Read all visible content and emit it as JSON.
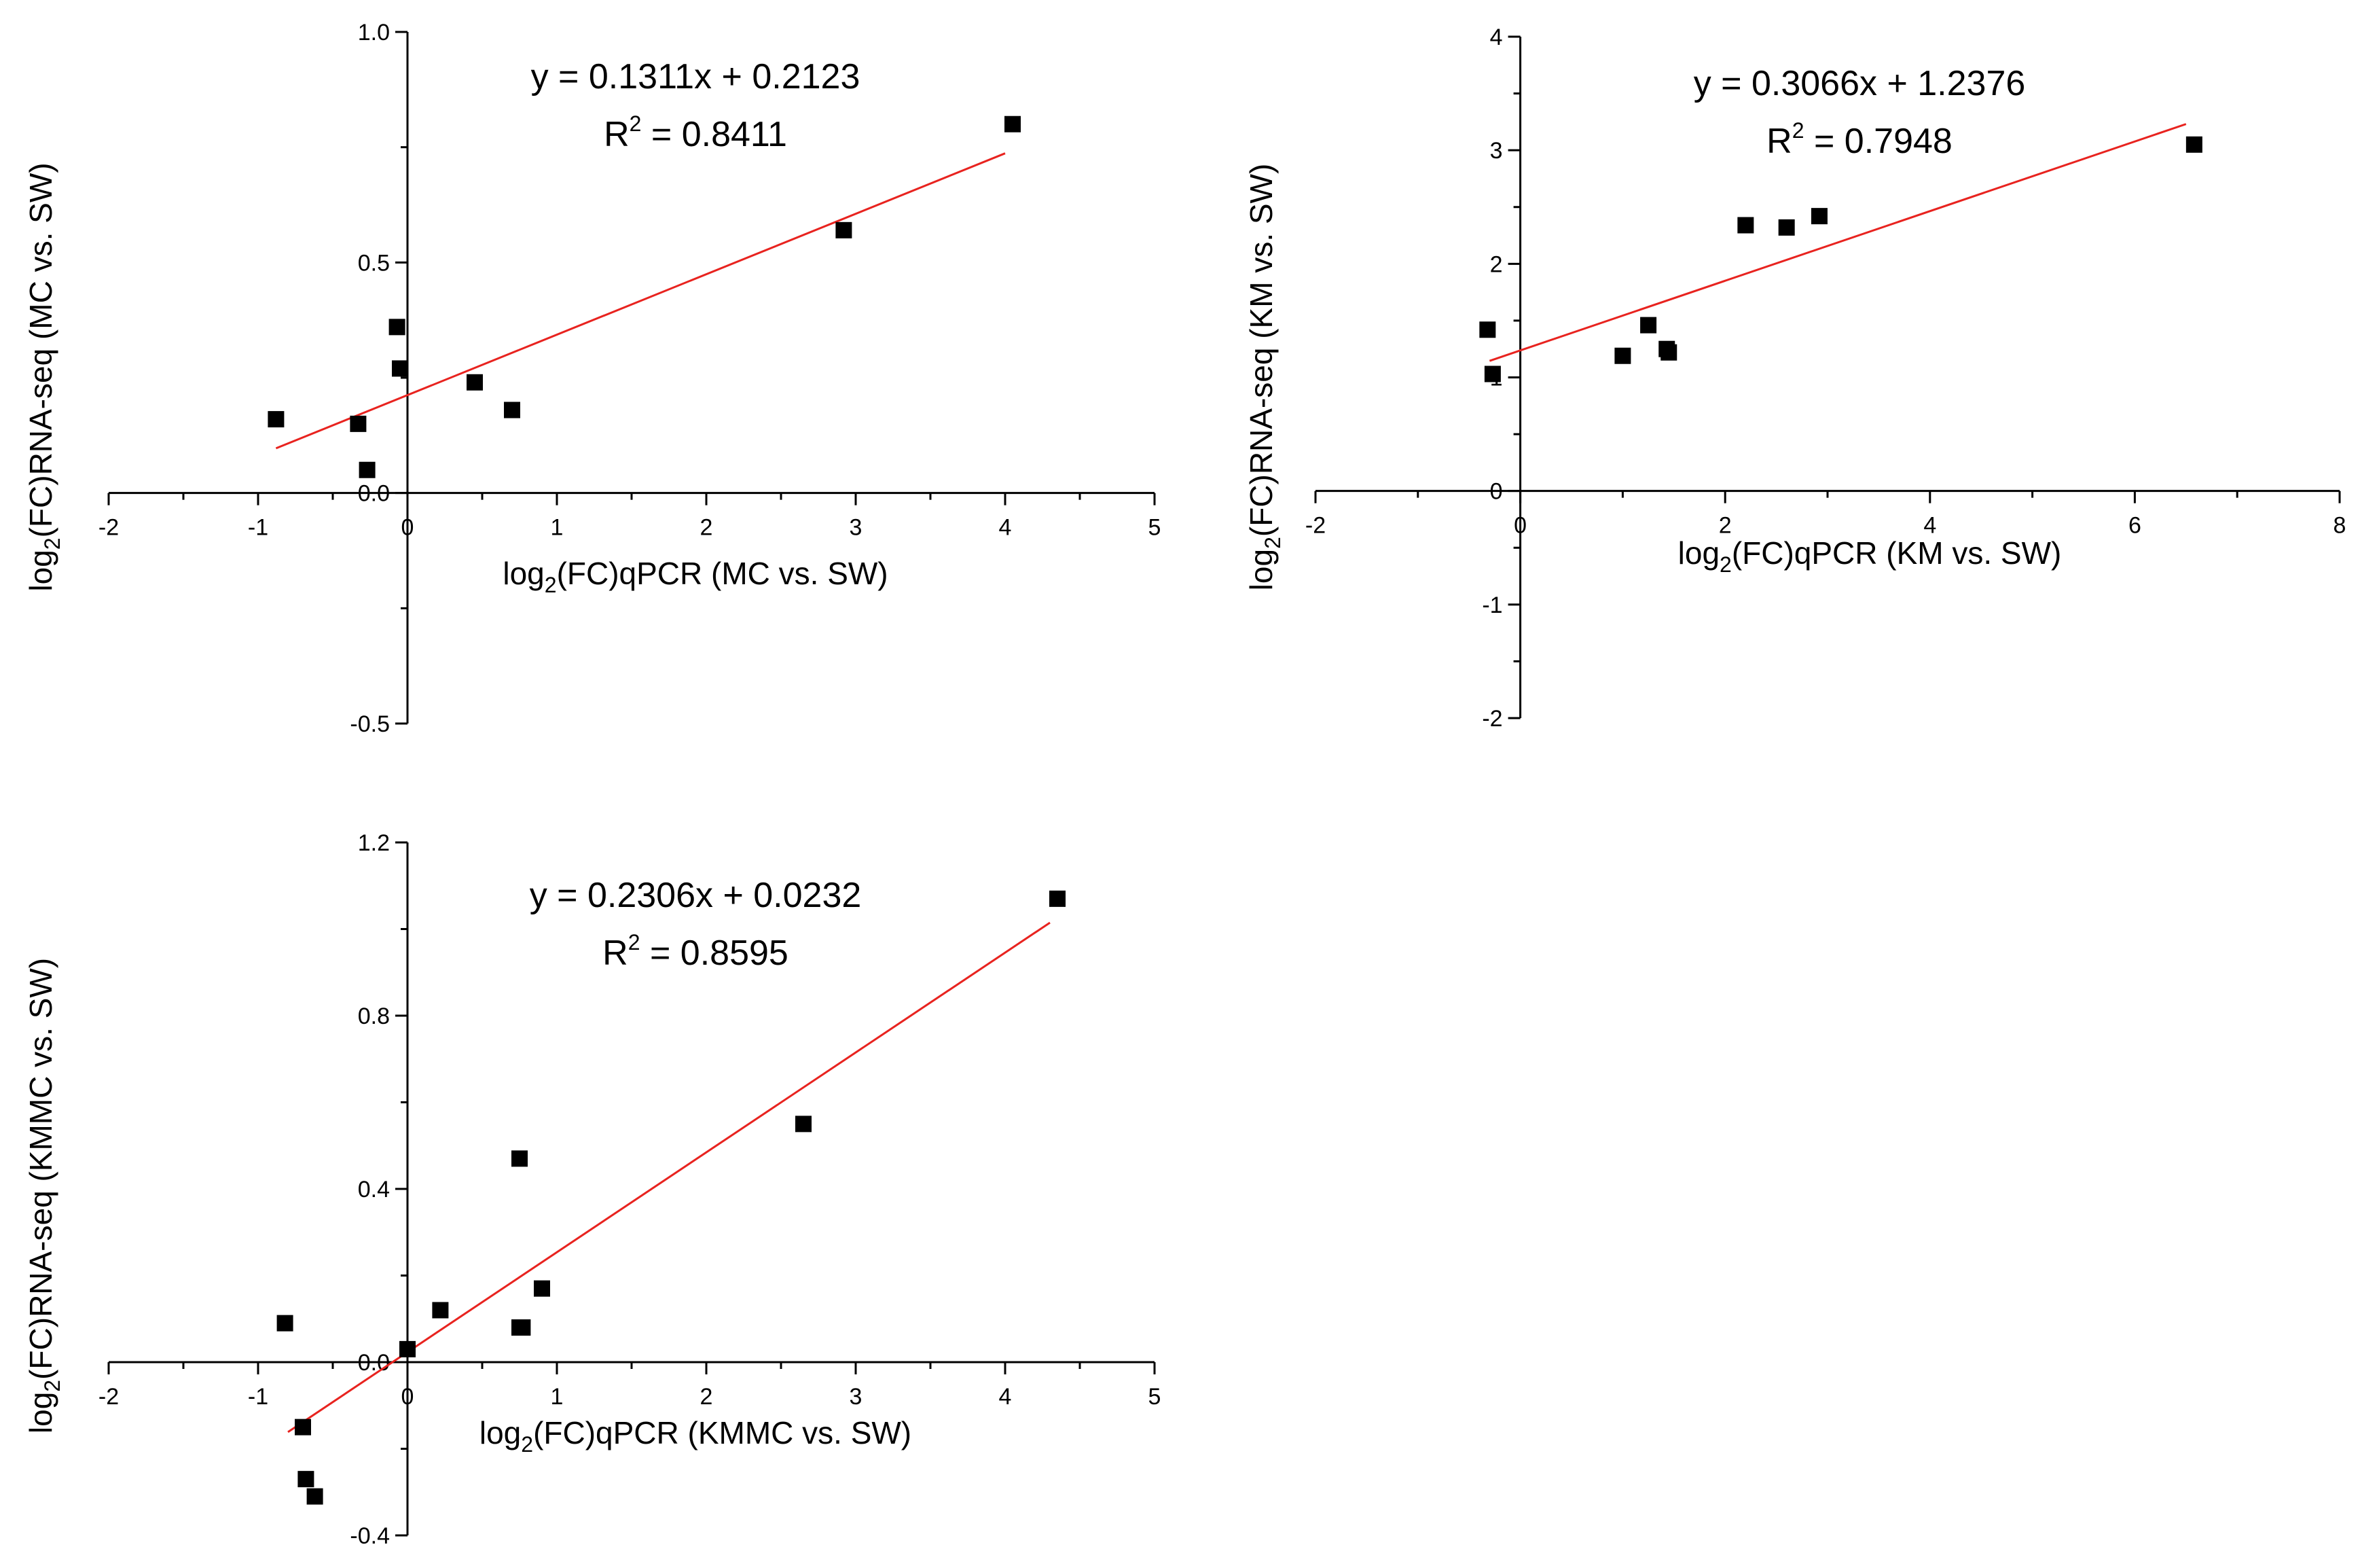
{
  "colors": {
    "points": "#000000",
    "fit_line": "#e8231f",
    "axes": "#000000"
  },
  "chart_data": [
    {
      "type": "scatter",
      "xlabel": {
        "base": "log",
        "sub": "2",
        "rest": "(FC)qPCR (MC vs. SW)"
      },
      "ylabel": {
        "base": "log",
        "sub": "2",
        "rest": "(FC)RNA-seq (MC vs. SW)"
      },
      "xlim": [
        -2,
        5
      ],
      "ylim": [
        -0.5,
        1.0
      ],
      "xticks": [
        -2,
        -1,
        0,
        1,
        2,
        3,
        4,
        5
      ],
      "yticks": [
        -0.5,
        0.0,
        0.5,
        1.0
      ],
      "ytick_labels": [
        "-0.5",
        "0.0",
        "0.5",
        "1.0"
      ],
      "equation": "y = 0.1311x + 0.2123",
      "r2": {
        "prefix": "R",
        "sup": "2",
        "value": " = 0.8411"
      },
      "fit": {
        "slope": 0.1311,
        "intercept": 0.2123,
        "x_range": [
          -0.88,
          4.0
        ]
      },
      "points": [
        {
          "x": -0.88,
          "y": 0.16
        },
        {
          "x": -0.33,
          "y": 0.15
        },
        {
          "x": -0.27,
          "y": 0.05
        },
        {
          "x": -0.07,
          "y": 0.36
        },
        {
          "x": -0.05,
          "y": 0.27
        },
        {
          "x": 0.45,
          "y": 0.24
        },
        {
          "x": 0.7,
          "y": 0.18
        },
        {
          "x": 2.92,
          "y": 0.57
        },
        {
          "x": 4.05,
          "y": 0.8
        }
      ]
    },
    {
      "type": "scatter",
      "xlabel": {
        "base": "log",
        "sub": "2",
        "rest": "(FC)qPCR (KM vs. SW)"
      },
      "ylabel": {
        "base": "log",
        "sub": "2",
        "rest": "(FC)RNA-seq (KM vs. SW)"
      },
      "xlim": [
        -2,
        8
      ],
      "ylim": [
        -2,
        4
      ],
      "xticks": [
        -2,
        0,
        2,
        4,
        6,
        8
      ],
      "yticks": [
        -2,
        -1,
        0,
        1,
        2,
        3,
        4
      ],
      "ytick_labels": [
        "-2",
        "-1",
        "0",
        "1",
        "2",
        "3",
        "4"
      ],
      "equation": "y = 0.3066x + 1.2376",
      "r2": {
        "prefix": "R",
        "sup": "2",
        "value": " = 0.7948"
      },
      "fit": {
        "slope": 0.3066,
        "intercept": 1.2376,
        "x_range": [
          -0.3,
          6.5
        ]
      },
      "points": [
        {
          "x": -0.32,
          "y": 1.42
        },
        {
          "x": -0.27,
          "y": 1.03
        },
        {
          "x": 1.0,
          "y": 1.19
        },
        {
          "x": 1.25,
          "y": 1.46
        },
        {
          "x": 1.43,
          "y": 1.25
        },
        {
          "x": 1.45,
          "y": 1.22
        },
        {
          "x": 2.2,
          "y": 2.34
        },
        {
          "x": 2.6,
          "y": 2.32
        },
        {
          "x": 2.92,
          "y": 2.42
        },
        {
          "x": 6.58,
          "y": 3.05
        }
      ]
    },
    {
      "type": "scatter",
      "xlabel": {
        "base": "log",
        "sub": "2",
        "rest": "(FC)qPCR (KMMC vs. SW)"
      },
      "ylabel": {
        "base": "log",
        "sub": "2",
        "rest": "(FC)RNA-seq (KMMC vs. SW)"
      },
      "xlim": [
        -2,
        5
      ],
      "ylim": [
        -0.4,
        1.2
      ],
      "xticks": [
        -2,
        -1,
        0,
        1,
        2,
        3,
        4,
        5
      ],
      "yticks": [
        -0.4,
        0.0,
        0.4,
        0.8,
        1.2
      ],
      "ytick_labels": [
        "-0.4",
        "0.0",
        "0.4",
        "0.8",
        "1.2"
      ],
      "equation": "y = 0.2306x + 0.0232",
      "r2": {
        "prefix": "R",
        "sup": "2",
        "value": " = 0.8595"
      },
      "fit": {
        "slope": 0.2306,
        "intercept": 0.0232,
        "x_range": [
          -0.8,
          4.3
        ]
      },
      "points": [
        {
          "x": -0.82,
          "y": 0.09
        },
        {
          "x": -0.7,
          "y": -0.15
        },
        {
          "x": -0.68,
          "y": -0.27
        },
        {
          "x": -0.62,
          "y": -0.31
        },
        {
          "x": 0.0,
          "y": 0.03
        },
        {
          "x": 0.22,
          "y": 0.12
        },
        {
          "x": 0.75,
          "y": 0.47
        },
        {
          "x": 0.75,
          "y": 0.08
        },
        {
          "x": 0.77,
          "y": 0.08
        },
        {
          "x": 0.9,
          "y": 0.17
        },
        {
          "x": 2.65,
          "y": 0.55
        },
        {
          "x": 4.35,
          "y": 1.07
        }
      ]
    }
  ]
}
